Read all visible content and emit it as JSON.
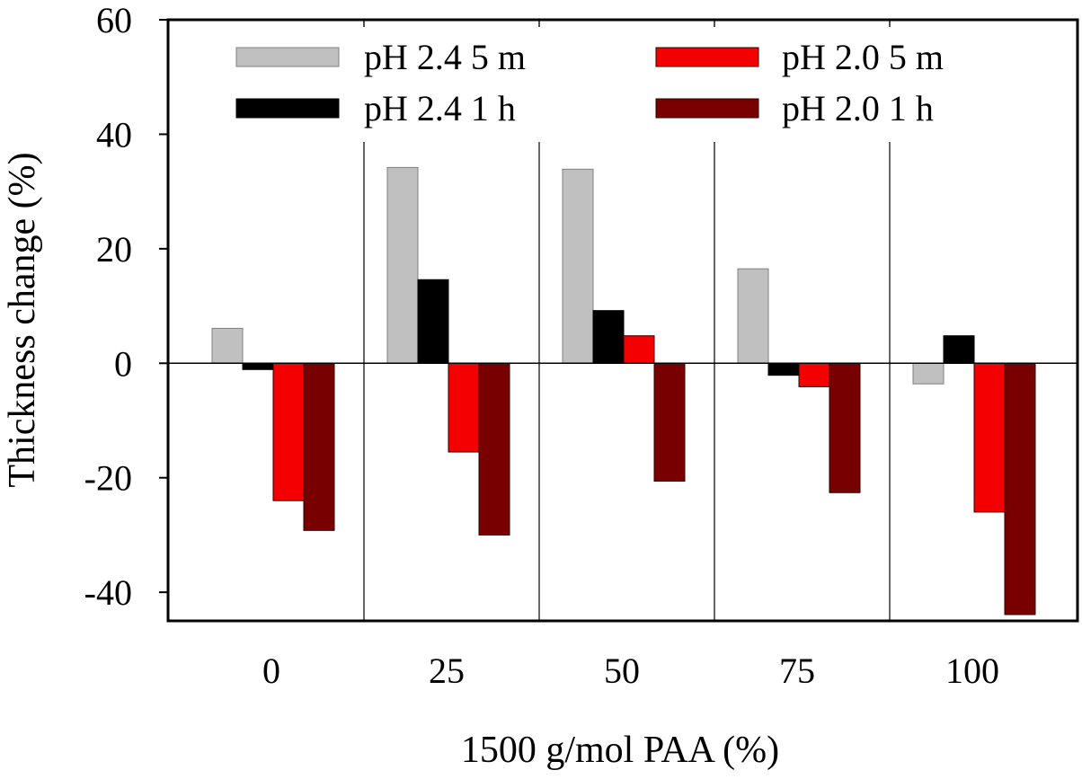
{
  "chart_data": {
    "type": "bar",
    "title": "",
    "xlabel": "1500 g/mol PAA (%)",
    "ylabel": "Thickness change (%)",
    "categories": [
      "0",
      "25",
      "50",
      "75",
      "100"
    ],
    "ylim": [
      -45,
      60
    ],
    "yticks": [
      -40,
      -20,
      0,
      20,
      40,
      60
    ],
    "ytick_labels": [
      "-40",
      "-20",
      "0",
      "20",
      "40",
      "60"
    ],
    "grid": false,
    "legend_position": "top",
    "series": [
      {
        "name": "pH 2.4 5 m",
        "color": "#c0c0c0",
        "edge": "#808080",
        "values": [
          6.1,
          34.2,
          33.9,
          16.5,
          -3.6
        ]
      },
      {
        "name": "pH 2.4 1 h",
        "color": "#000000",
        "edge": "#000000",
        "values": [
          -1.1,
          14.6,
          9.2,
          -2.1,
          4.8
        ]
      },
      {
        "name": "pH 2.0 5 m",
        "color": "#f50000",
        "edge": "#300000",
        "values": [
          -24.0,
          -15.5,
          4.8,
          -4.1,
          -26.0
        ]
      },
      {
        "name": "pH 2.0 1 h",
        "color": "#780000",
        "edge": "#300000",
        "values": [
          -29.2,
          -30.0,
          -20.6,
          -22.6,
          -43.9
        ]
      }
    ]
  }
}
